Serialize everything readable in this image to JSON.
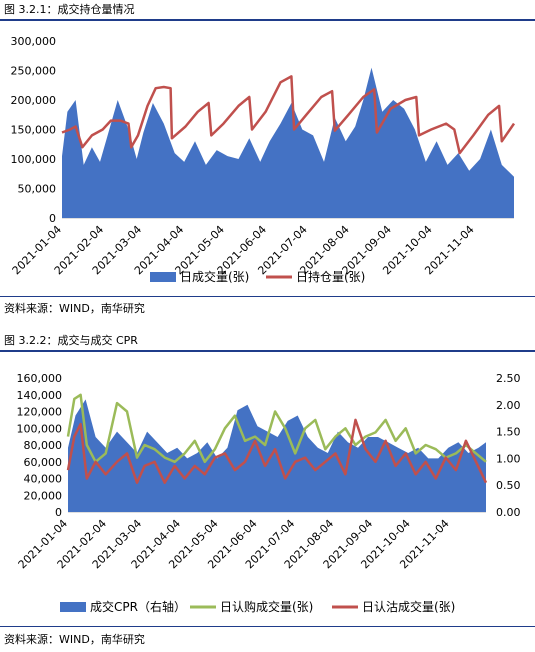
{
  "figure1": {
    "title": "图 3.2.1：成交持仓量情况",
    "source": "资料来源：WIND，南华研究",
    "chart_data": {
      "type": "area+line",
      "title": "",
      "x_tick_labels": [
        "2021-01-04",
        "2021-02-04",
        "2021-03-04",
        "2021-04-04",
        "2021-05-04",
        "2021-06-04",
        "2021-07-04",
        "2021-08-04",
        "2021-09-04",
        "2021-10-04",
        "2021-11-04"
      ],
      "y_tick_labels": [
        "0",
        "50,000",
        "100,000",
        "150,000",
        "200,000",
        "250,000",
        "300,000"
      ],
      "ylim": [
        0,
        300000
      ],
      "x_range": [
        "2021-01-04",
        "2021-12-03"
      ],
      "colors": {
        "volume": "#4472c4",
        "open_interest": "#c0504d"
      },
      "series": [
        {
          "name": "日成交量(张)",
          "type": "area",
          "x": [
            "2021-01-04",
            "2021-01-08",
            "2021-01-14",
            "2021-01-20",
            "2021-01-26",
            "2021-02-01",
            "2021-02-06",
            "2021-02-14",
            "2021-02-22",
            "2021-02-28",
            "2021-03-05",
            "2021-03-12",
            "2021-03-20",
            "2021-03-28",
            "2021-04-04",
            "2021-04-12",
            "2021-04-20",
            "2021-04-28",
            "2021-05-06",
            "2021-05-14",
            "2021-05-22",
            "2021-05-30",
            "2021-06-06",
            "2021-06-14",
            "2021-06-22",
            "2021-06-30",
            "2021-07-08",
            "2021-07-16",
            "2021-07-24",
            "2021-08-01",
            "2021-08-08",
            "2021-08-14",
            "2021-08-20",
            "2021-08-28",
            "2021-09-05",
            "2021-09-13",
            "2021-09-21",
            "2021-09-29",
            "2021-10-07",
            "2021-10-15",
            "2021-10-23",
            "2021-10-31",
            "2021-11-08",
            "2021-11-16",
            "2021-11-24",
            "2021-12-03"
          ],
          "values": [
            105000,
            180000,
            200000,
            90000,
            120000,
            95000,
            135000,
            200000,
            150000,
            100000,
            145000,
            195000,
            160000,
            110000,
            95000,
            130000,
            90000,
            115000,
            105000,
            100000,
            135000,
            95000,
            130000,
            160000,
            195000,
            150000,
            140000,
            95000,
            170000,
            130000,
            155000,
            200000,
            255000,
            180000,
            200000,
            185000,
            150000,
            95000,
            130000,
            90000,
            110000,
            80000,
            100000,
            150000,
            90000,
            70000
          ]
        },
        {
          "name": "日持仓量(张)",
          "type": "line",
          "x": [
            "2021-01-04",
            "2021-01-10",
            "2021-01-14",
            "2021-01-19",
            "2021-01-26",
            "2021-02-03",
            "2021-02-09",
            "2021-02-16",
            "2021-02-22",
            "2021-02-24",
            "2021-03-01",
            "2021-03-08",
            "2021-03-14",
            "2021-03-20",
            "2021-03-25",
            "2021-03-26",
            "2021-04-05",
            "2021-04-14",
            "2021-04-22",
            "2021-04-24",
            "2021-05-03",
            "2021-05-14",
            "2021-05-22",
            "2021-05-24",
            "2021-06-03",
            "2021-06-14",
            "2021-06-22",
            "2021-06-24",
            "2021-07-03",
            "2021-07-14",
            "2021-07-22",
            "2021-07-24",
            "2021-08-03",
            "2021-08-14",
            "2021-08-22",
            "2021-08-24",
            "2021-09-03",
            "2021-09-14",
            "2021-09-22",
            "2021-09-24",
            "2021-10-03",
            "2021-10-14",
            "2021-10-20",
            "2021-10-24",
            "2021-11-03",
            "2021-11-14",
            "2021-11-22",
            "2021-11-24",
            "2021-12-03"
          ],
          "values": [
            145000,
            150000,
            155000,
            120000,
            140000,
            150000,
            165000,
            165000,
            160000,
            120000,
            140000,
            190000,
            220000,
            222000,
            220000,
            135000,
            155000,
            180000,
            195000,
            140000,
            160000,
            190000,
            205000,
            150000,
            180000,
            230000,
            240000,
            150000,
            175000,
            205000,
            215000,
            148000,
            175000,
            205000,
            218000,
            145000,
            185000,
            200000,
            205000,
            140000,
            150000,
            160000,
            150000,
            110000,
            140000,
            175000,
            190000,
            130000,
            160000
          ]
        }
      ]
    }
  },
  "figure2": {
    "title": "图 3.2.2：成交与成交 CPR",
    "source": "资料来源：WIND，南华研究",
    "chart_data": {
      "type": "area+line",
      "title": "",
      "x_tick_labels": [
        "2021-01-04",
        "2021-02-04",
        "2021-03-04",
        "2021-04-04",
        "2021-05-04",
        "2021-06-04",
        "2021-07-04",
        "2021-08-04",
        "2021-09-04",
        "2021-10-04",
        "2021-11-04"
      ],
      "y_left_tick_labels": [
        "0",
        "20,000",
        "40,000",
        "60,000",
        "80,000",
        "100,000",
        "120,000",
        "140,000",
        "160,000"
      ],
      "y_right_tick_labels": [
        "0.00",
        "0.50",
        "1.00",
        "1.50",
        "2.00",
        "2.50"
      ],
      "ylim_left": [
        0,
        160000
      ],
      "ylim_right": [
        0,
        2.5
      ],
      "x_range": [
        "2021-01-04",
        "2021-12-03"
      ],
      "colors": {
        "cpr": "#4472c4",
        "buy": "#9bbb59",
        "sell": "#c0504d"
      },
      "series": [
        {
          "name": "成交CPR（右轴）",
          "type": "area",
          "axis": "right",
          "x": [
            "2021-01-04",
            "2021-01-10",
            "2021-01-18",
            "2021-01-26",
            "2021-02-03",
            "2021-02-12",
            "2021-02-20",
            "2021-02-28",
            "2021-03-08",
            "2021-03-16",
            "2021-03-24",
            "2021-04-01",
            "2021-04-09",
            "2021-04-17",
            "2021-04-25",
            "2021-05-03",
            "2021-05-11",
            "2021-05-19",
            "2021-05-27",
            "2021-06-04",
            "2021-06-12",
            "2021-06-20",
            "2021-06-28",
            "2021-07-06",
            "2021-07-14",
            "2021-07-22",
            "2021-07-30",
            "2021-08-07",
            "2021-08-15",
            "2021-08-23",
            "2021-08-31",
            "2021-09-08",
            "2021-09-16",
            "2021-09-24",
            "2021-10-02",
            "2021-10-10",
            "2021-10-18",
            "2021-10-26",
            "2021-11-03",
            "2021-11-11",
            "2021-11-19",
            "2021-11-27",
            "2021-12-03"
          ],
          "values": [
            1.2,
            1.8,
            2.1,
            1.4,
            1.2,
            1.5,
            1.3,
            1.1,
            1.5,
            1.3,
            1.1,
            1.2,
            1.0,
            1.1,
            1.3,
            1.0,
            1.2,
            1.9,
            2.0,
            1.6,
            1.5,
            1.4,
            1.7,
            1.8,
            1.4,
            1.2,
            1.1,
            1.5,
            1.3,
            1.2,
            1.4,
            1.4,
            1.3,
            1.2,
            1.1,
            1.2,
            1.0,
            1.0,
            1.2,
            1.3,
            1.1,
            1.2,
            1.3
          ]
        },
        {
          "name": "日认购成交量(张)",
          "type": "line",
          "axis": "left",
          "x": [
            "2021-01-04",
            "2021-01-09",
            "2021-01-14",
            "2021-01-19",
            "2021-01-26",
            "2021-02-03",
            "2021-02-12",
            "2021-02-20",
            "2021-02-28",
            "2021-03-06",
            "2021-03-14",
            "2021-03-22",
            "2021-03-30",
            "2021-04-07",
            "2021-04-15",
            "2021-04-23",
            "2021-05-01",
            "2021-05-09",
            "2021-05-17",
            "2021-05-25",
            "2021-06-02",
            "2021-06-10",
            "2021-06-18",
            "2021-06-26",
            "2021-07-04",
            "2021-07-12",
            "2021-07-20",
            "2021-07-28",
            "2021-08-05",
            "2021-08-13",
            "2021-08-21",
            "2021-08-29",
            "2021-09-06",
            "2021-09-14",
            "2021-09-22",
            "2021-09-30",
            "2021-10-08",
            "2021-10-16",
            "2021-10-24",
            "2021-11-01",
            "2021-11-09",
            "2021-11-17",
            "2021-11-25",
            "2021-12-03"
          ],
          "values": [
            90000,
            135000,
            140000,
            80000,
            60000,
            70000,
            130000,
            120000,
            65000,
            80000,
            75000,
            65000,
            60000,
            70000,
            85000,
            60000,
            75000,
            100000,
            115000,
            85000,
            90000,
            80000,
            120000,
            100000,
            70000,
            100000,
            110000,
            75000,
            90000,
            100000,
            80000,
            90000,
            95000,
            110000,
            85000,
            100000,
            70000,
            80000,
            75000,
            65000,
            70000,
            80000,
            70000,
            60000
          ]
        },
        {
          "name": "日认沽成交量(张)",
          "type": "line",
          "axis": "left",
          "x": [
            "2021-01-04",
            "2021-01-09",
            "2021-01-14",
            "2021-01-19",
            "2021-01-26",
            "2021-02-03",
            "2021-02-12",
            "2021-02-20",
            "2021-02-28",
            "2021-03-06",
            "2021-03-14",
            "2021-03-22",
            "2021-03-30",
            "2021-04-07",
            "2021-04-15",
            "2021-04-23",
            "2021-05-01",
            "2021-05-09",
            "2021-05-17",
            "2021-05-25",
            "2021-06-02",
            "2021-06-10",
            "2021-06-18",
            "2021-06-26",
            "2021-07-04",
            "2021-07-12",
            "2021-07-20",
            "2021-07-28",
            "2021-08-05",
            "2021-08-13",
            "2021-08-21",
            "2021-08-29",
            "2021-09-06",
            "2021-09-14",
            "2021-09-22",
            "2021-09-30",
            "2021-10-08",
            "2021-10-16",
            "2021-10-24",
            "2021-11-01",
            "2021-11-09",
            "2021-11-17",
            "2021-11-25",
            "2021-12-03"
          ],
          "values": [
            50000,
            90000,
            105000,
            40000,
            60000,
            45000,
            60000,
            70000,
            35000,
            55000,
            60000,
            35000,
            55000,
            40000,
            55000,
            45000,
            65000,
            70000,
            50000,
            60000,
            85000,
            55000,
            75000,
            40000,
            60000,
            65000,
            50000,
            60000,
            70000,
            45000,
            110000,
            75000,
            60000,
            85000,
            55000,
            70000,
            45000,
            60000,
            40000,
            65000,
            50000,
            85000,
            60000,
            35000
          ]
        }
      ]
    }
  }
}
